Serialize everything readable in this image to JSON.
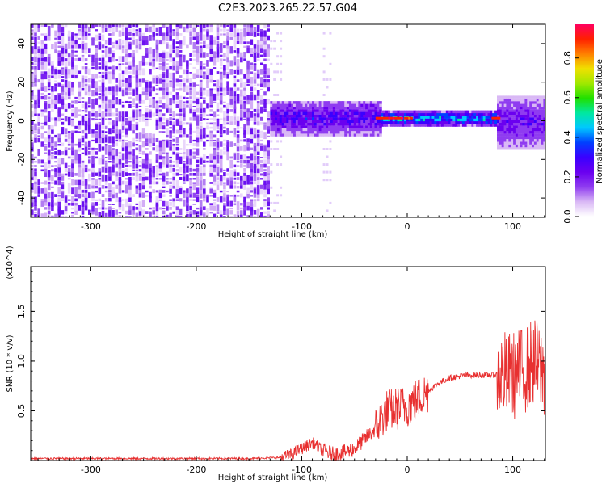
{
  "figure": {
    "title": "C2E3.2023.265.22.57.G04"
  },
  "chart_data": [
    {
      "type": "heatmap",
      "xlabel": "Height of straight line (km)",
      "ylabel": "Frequency (Hz)",
      "xlim": [
        -357,
        131
      ],
      "ylim": [
        -50,
        50
      ],
      "xticks": [
        -300,
        -200,
        -100,
        0,
        100
      ],
      "yticks": [
        -40,
        -20,
        0,
        20,
        40
      ],
      "colorbar": {
        "label": "Normalized spectral amplitude",
        "range": [
          0.0,
          0.97
        ],
        "ticks": [
          "0.0",
          "0.2",
          "0.4",
          "0.6",
          "0.8"
        ],
        "colormap": [
          "#ffffff",
          "#d9b8f5",
          "#8f3cf0",
          "#6a00f0",
          "#3a00ff",
          "#0040ff",
          "#00c8ff",
          "#00e8a0",
          "#20e000",
          "#a0e800",
          "#f0e000",
          "#ff8000",
          "#ff2000",
          "#ff0060"
        ]
      },
      "regions": [
        {
          "description_x": [
            -357,
            -130
          ],
          "frequency_band": [
            -50,
            50
          ],
          "amplitude": 0.05
        },
        {
          "description_x": [
            -130,
            -25
          ],
          "frequency_band": [
            -8,
            10
          ],
          "amplitude": 0.3
        },
        {
          "description_x": [
            -25,
            85
          ],
          "frequency_band": [
            -3,
            4
          ],
          "amplitude": 0.5
        },
        {
          "description_x": [
            85,
            131
          ],
          "frequency_band": [
            -15,
            12
          ],
          "amplitude": 0.25
        }
      ],
      "grid": false
    },
    {
      "type": "line",
      "xlabel": "Height of straight line (km)",
      "ylabel": "SNR (10 * v/v)",
      "y_multiplier": "(x10^4)",
      "xlim": [
        -357,
        131
      ],
      "ylim": [
        0,
        1.95
      ],
      "xticks": [
        -300,
        -200,
        -100,
        0,
        100
      ],
      "yticks": [
        0.5,
        1.0,
        1.5
      ],
      "line_color": "#e83030",
      "series": [
        {
          "x": [
            -357,
            -300,
            -250,
            -200,
            -150,
            -120,
            -110,
            -100,
            -90,
            -80,
            -70,
            -60,
            -50,
            -40,
            -30,
            -20,
            -10,
            0,
            10,
            20,
            30,
            40,
            50,
            60,
            70,
            80,
            90,
            100,
            110,
            120,
            131
          ],
          "y": [
            0.02,
            0.02,
            0.02,
            0.02,
            0.02,
            0.03,
            0.06,
            0.12,
            0.18,
            0.1,
            0.06,
            0.08,
            0.12,
            0.22,
            0.32,
            0.5,
            0.52,
            0.55,
            0.62,
            0.7,
            0.78,
            0.83,
            0.85,
            0.86,
            0.86,
            0.86,
            0.87,
            0.85,
            0.9,
            1.0,
            0.85
          ]
        }
      ],
      "grid": false
    }
  ]
}
